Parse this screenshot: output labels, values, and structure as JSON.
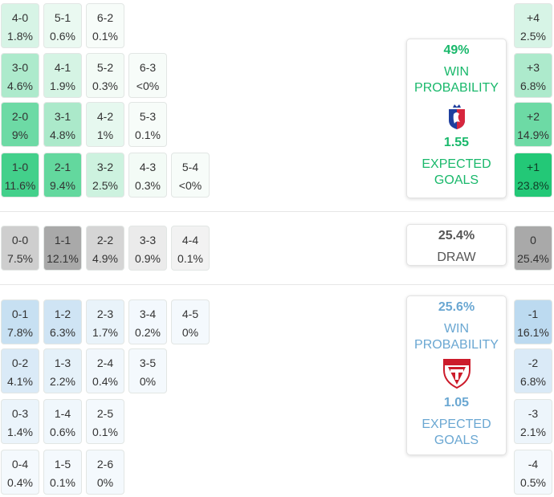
{
  "colors": {
    "home_accent": "#19b86b",
    "away_accent": "#6aa7d2",
    "draw_text": "#555555"
  },
  "home_scores": [
    {
      "score": "4-0",
      "pct": "1.8%",
      "intensity": 0.15
    },
    {
      "score": "5-1",
      "pct": "0.6%",
      "intensity": 0.06
    },
    {
      "score": "6-2",
      "pct": "0.1%",
      "intensity": 0.0
    },
    {
      "score": "3-0",
      "pct": "4.6%",
      "intensity": 0.35
    },
    {
      "score": "4-1",
      "pct": "1.9%",
      "intensity": 0.16
    },
    {
      "score": "5-2",
      "pct": "0.3%",
      "intensity": 0.02
    },
    {
      "score": "6-3",
      "pct": "<0%",
      "intensity": 0.0
    },
    {
      "score": "2-0",
      "pct": "9%",
      "intensity": 0.65
    },
    {
      "score": "3-1",
      "pct": "4.8%",
      "intensity": 0.36
    },
    {
      "score": "4-2",
      "pct": "1%",
      "intensity": 0.08
    },
    {
      "score": "5-3",
      "pct": "0.1%",
      "intensity": 0.0
    },
    {
      "score": "1-0",
      "pct": "11.6%",
      "intensity": 0.85
    },
    {
      "score": "2-1",
      "pct": "9.4%",
      "intensity": 0.7
    },
    {
      "score": "3-2",
      "pct": "2.5%",
      "intensity": 0.2
    },
    {
      "score": "4-3",
      "pct": "0.3%",
      "intensity": 0.02
    },
    {
      "score": "5-4",
      "pct": "<0%",
      "intensity": 0.0
    }
  ],
  "draw_scores": [
    {
      "score": "0-0",
      "pct": "7.5%",
      "intensity": 0.5
    },
    {
      "score": "1-1",
      "pct": "12.1%",
      "intensity": 1.0
    },
    {
      "score": "2-2",
      "pct": "4.9%",
      "intensity": 0.4
    },
    {
      "score": "3-3",
      "pct": "0.9%",
      "intensity": 0.1
    },
    {
      "score": "4-4",
      "pct": "0.1%",
      "intensity": 0.0
    }
  ],
  "away_scores": [
    {
      "score": "0-1",
      "pct": "7.8%",
      "intensity": 0.6
    },
    {
      "score": "1-2",
      "pct": "6.3%",
      "intensity": 0.5
    },
    {
      "score": "2-3",
      "pct": "1.7%",
      "intensity": 0.15
    },
    {
      "score": "3-4",
      "pct": "0.2%",
      "intensity": 0.02
    },
    {
      "score": "4-5",
      "pct": "0%",
      "intensity": 0.0
    },
    {
      "score": "0-2",
      "pct": "4.1%",
      "intensity": 0.35
    },
    {
      "score": "1-3",
      "pct": "2.2%",
      "intensity": 0.2
    },
    {
      "score": "2-4",
      "pct": "0.4%",
      "intensity": 0.04
    },
    {
      "score": "3-5",
      "pct": "0%",
      "intensity": 0.0
    },
    {
      "score": "0-3",
      "pct": "1.4%",
      "intensity": 0.12
    },
    {
      "score": "1-4",
      "pct": "0.6%",
      "intensity": 0.05
    },
    {
      "score": "2-5",
      "pct": "0.1%",
      "intensity": 0.0
    },
    {
      "score": "0-4",
      "pct": "0.4%",
      "intensity": 0.0
    },
    {
      "score": "1-5",
      "pct": "0.1%",
      "intensity": 0.0
    },
    {
      "score": "2-6",
      "pct": "0%",
      "intensity": 0.0
    }
  ],
  "margins": [
    {
      "label": "+4",
      "pct": "2.5%",
      "side": "home",
      "intensity": 0.15
    },
    {
      "label": "+3",
      "pct": "6.8%",
      "side": "home",
      "intensity": 0.35
    },
    {
      "label": "+2",
      "pct": "14.9%",
      "side": "home",
      "intensity": 0.65
    },
    {
      "label": "+1",
      "pct": "23.8%",
      "side": "home",
      "intensity": 1.0
    },
    {
      "label": "0",
      "pct": "25.4%",
      "side": "draw",
      "intensity": 1.0
    },
    {
      "label": "-1",
      "pct": "16.1%",
      "side": "away",
      "intensity": 0.75
    },
    {
      "label": "-2",
      "pct": "6.8%",
      "side": "away",
      "intensity": 0.35
    },
    {
      "label": "-3",
      "pct": "2.1%",
      "side": "away",
      "intensity": 0.1
    },
    {
      "label": "-4",
      "pct": "0.5%",
      "side": "away",
      "intensity": 0.0
    }
  ],
  "home_card": {
    "win_pct": "49%",
    "win_label_1": "WIN",
    "win_label_2": "PROBABILITY",
    "xg": "1.55",
    "xg_label_1": "EXPECTED",
    "xg_label_2": "GOALS",
    "logo_icon": "home-team-crest-icon"
  },
  "draw_card": {
    "pct": "25.4%",
    "label": "DRAW"
  },
  "away_card": {
    "win_pct": "25.6%",
    "win_label_1": "WIN",
    "win_label_2": "PROBABILITY",
    "xg": "1.05",
    "xg_label_1": "EXPECTED",
    "xg_label_2": "GOALS",
    "logo_icon": "uta-crest-icon"
  }
}
